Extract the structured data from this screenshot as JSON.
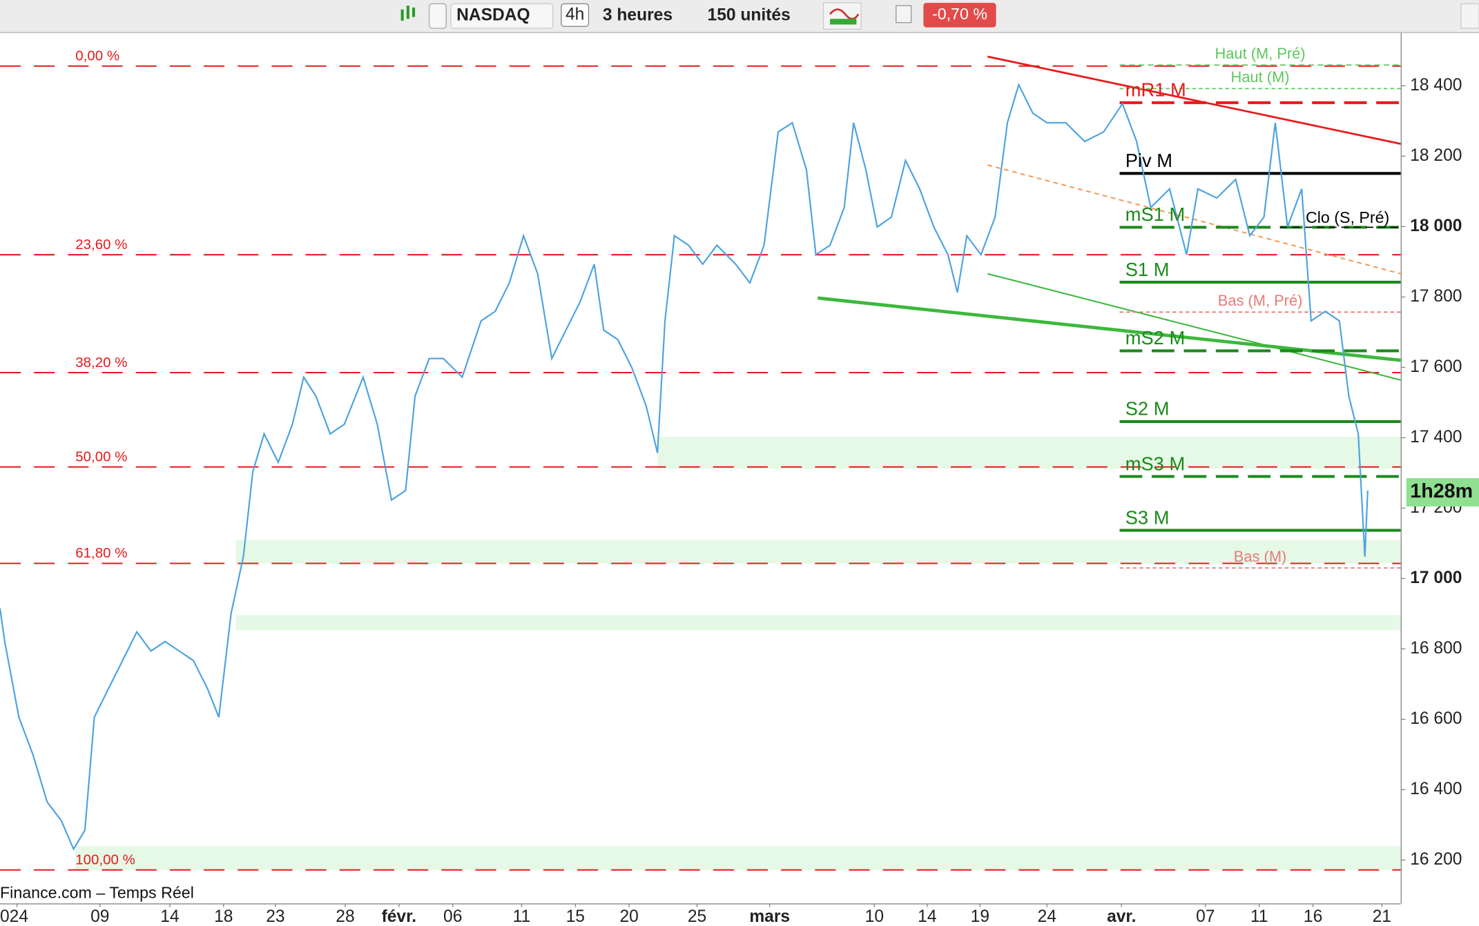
{
  "toolbar": {
    "symbol": "NASDAQ",
    "interval": "4h",
    "period": "3 heures",
    "units": "150 unités",
    "change": "-0,70 %"
  },
  "chart_data": {
    "type": "line",
    "source": "Finance.com – Temps Réel",
    "x": [
      0,
      0.5,
      2,
      3.5,
      5,
      6.5,
      7.8,
      9,
      10,
      11.5,
      13,
      14.5,
      16,
      17.5,
      19,
      20.5,
      22,
      23.2,
      24.5,
      25.8,
      26.8,
      28,
      29.5,
      31,
      32.2,
      33.5,
      35,
      36.5,
      38.5,
      40,
      41.5,
      43,
      44,
      45.5,
      47,
      49,
      51,
      52.5,
      54,
      55.5,
      57,
      58.5,
      60,
      61.5,
      63,
      64,
      65.5,
      67,
      68.5,
      69.7,
      70.5,
      71.5,
      73,
      74.5,
      76,
      78,
      79.5,
      81,
      82.5,
      84,
      85.5,
      86.5,
      88,
      89.5,
      90.5,
      91.8,
      93,
      94.5,
      96,
      97.5,
      99,
      100.5,
      101.5,
      102.5,
      104,
      105.5,
      106.8,
      108,
      109.5,
      111,
      113,
      115,
      117,
      119,
      120.5,
      122,
      124,
      125.8,
      127,
      129,
      131,
      132.5,
      134,
      135.2,
      136.5,
      138,
      139,
      140.5,
      142,
      143,
      144,
      144.7,
      145
    ],
    "series": [
      {
        "color": "#4da3e0",
        "values": [
          16915,
          16821,
          16606,
          16499,
          16365,
          16312,
          16231,
          16285,
          16606,
          16687,
          16767,
          16848,
          16794,
          16821,
          16794,
          16767,
          16687,
          16606,
          16901,
          17062,
          17303,
          17411,
          17330,
          17438,
          17572,
          17518,
          17411,
          17438,
          17572,
          17438,
          17223,
          17250,
          17518,
          17625,
          17625,
          17572,
          17732,
          17759,
          17840,
          17974,
          17866,
          17625,
          17706,
          17786,
          17893,
          17706,
          17679,
          17598,
          17491,
          17357,
          17732,
          17974,
          17947,
          17893,
          17947,
          17893,
          17840,
          17947,
          18269,
          18295,
          18161,
          17920,
          17947,
          18054,
          18295,
          18161,
          17999,
          18027,
          18188,
          18107,
          17999,
          17920,
          17813,
          17974,
          17920,
          18027,
          18295,
          18403,
          18322,
          18295,
          18295,
          18242,
          18269,
          18349,
          18242,
          18054,
          18107,
          17920,
          18107,
          18081,
          18134,
          17974,
          18027,
          18295,
          17999,
          18107,
          17732,
          17759,
          17732,
          17518,
          17411,
          17062,
          17250
        ]
      }
    ],
    "xlim": [
      0,
      148.5
    ],
    "ylim": [
      16077,
      18550
    ],
    "xticks": [
      {
        "value": 1.8,
        "label": "024"
      },
      {
        "value": 10.6,
        "label": "09"
      },
      {
        "value": 18,
        "label": "14"
      },
      {
        "value": 23.7,
        "label": "18"
      },
      {
        "value": 29.2,
        "label": "23"
      },
      {
        "value": 36.6,
        "label": "28"
      },
      {
        "value": 42.3,
        "label": "févr."
      },
      {
        "value": 48,
        "label": "06"
      },
      {
        "value": 55.3,
        "label": "11"
      },
      {
        "value": 61,
        "label": "15"
      },
      {
        "value": 66.7,
        "label": "20"
      },
      {
        "value": 73.9,
        "label": "25"
      },
      {
        "value": 81.6,
        "label": "mars"
      },
      {
        "value": 92.7,
        "label": "10"
      },
      {
        "value": 98.3,
        "label": "14"
      },
      {
        "value": 103.9,
        "label": "19"
      },
      {
        "value": 111,
        "label": "24"
      },
      {
        "value": 118.9,
        "label": "avr."
      },
      {
        "value": 127.8,
        "label": "07"
      },
      {
        "value": 133.5,
        "label": "11"
      },
      {
        "value": 139.2,
        "label": "16"
      },
      {
        "value": 146.5,
        "label": "21"
      }
    ],
    "yticks": [
      {
        "value": 16200,
        "label": "16 200"
      },
      {
        "value": 16400,
        "label": "16 400"
      },
      {
        "value": 16600,
        "label": "16 600"
      },
      {
        "value": 16800,
        "label": "16 800"
      },
      {
        "value": 17000,
        "label": "17 000"
      },
      {
        "value": 17200,
        "label": "17 200"
      },
      {
        "value": 17400,
        "label": "17 400"
      },
      {
        "value": 17600,
        "label": "17 600"
      },
      {
        "value": 17800,
        "label": "17 800"
      },
      {
        "value": 18000,
        "label": "18 000"
      },
      {
        "value": 18200,
        "label": "18 200"
      },
      {
        "value": 18400,
        "label": "18 400"
      }
    ],
    "countdown": {
      "value": 17245,
      "label": "1h28m"
    },
    "fib_levels": [
      {
        "value": 18456,
        "label": "0,00 %"
      },
      {
        "value": 17920,
        "label": "23,60 %"
      },
      {
        "value": 17585,
        "label": "38,20 %"
      },
      {
        "value": 17317,
        "label": "50,00 %"
      },
      {
        "value": 17043,
        "label": "61,80 %"
      },
      {
        "value": 16172,
        "label": "100,00 %"
      }
    ],
    "fib_color": "#e8191a",
    "pivot_start": 118.7,
    "pivot_levels": [
      {
        "value": 18459,
        "label": "Haut (M, Pré)",
        "color": "#5cc85c",
        "style": "dashed-light"
      },
      {
        "value": 18392,
        "label": "Haut (M)",
        "color": "#5cc85c",
        "style": "dotted"
      },
      {
        "value": 18352,
        "label": "mR1 M",
        "color": "#e8191a",
        "style": "dashed"
      },
      {
        "value": 18151,
        "label": "Piv M",
        "color": "#000000",
        "style": "solid"
      },
      {
        "value": 17998,
        "label": "mS1 M",
        "color": "#1a8a1a",
        "style": "dashed"
      },
      {
        "value": 17998,
        "label": "Clo (S, Pré)",
        "color": "#000000",
        "style": "right"
      },
      {
        "value": 17842,
        "label": "S1 M",
        "color": "#1a8a1a",
        "style": "solid"
      },
      {
        "value": 17757,
        "label": "Bas (M, Pré)",
        "color": "#e87a7a",
        "style": "dotted"
      },
      {
        "value": 17647,
        "label": "mS2 M",
        "color": "#1a8a1a",
        "style": "dashed"
      },
      {
        "value": 17446,
        "label": "S2 M",
        "color": "#1a8a1a",
        "style": "solid"
      },
      {
        "value": 17290,
        "label": "mS3 M",
        "color": "#1a8a1a",
        "style": "dashed"
      },
      {
        "value": 17137,
        "label": "S3 M",
        "color": "#1a8a1a",
        "style": "solid"
      },
      {
        "value": 17030,
        "label": "Bas (M)",
        "color": "#e87a7a",
        "style": "dotted"
      }
    ],
    "zones": [
      {
        "start": 69.7,
        "from": 17403,
        "to": 17312
      },
      {
        "start": 25,
        "from": 17110,
        "to": 17043
      },
      {
        "start": 25,
        "from": 16896,
        "to": 16853
      },
      {
        "start": 8,
        "from": 16239,
        "to": 16172
      }
    ],
    "zone_color": "#e6f8e6",
    "trendlines": [
      {
        "color": "#e8191a",
        "width": 2,
        "x": [
          104.7,
          156.8
        ],
        "values": [
          18483,
          18188
        ]
      },
      {
        "color": "#f39a5a",
        "width": 1.5,
        "dash": true,
        "x": [
          104.7,
          148.5
        ],
        "values": [
          18175,
          17866
        ]
      },
      {
        "color": "#3cb83c",
        "width": 3.5,
        "x": [
          86.7,
          148.5
        ],
        "values": [
          17797,
          17620
        ]
      },
      {
        "color": "#3cb83c",
        "width": 1.5,
        "x": [
          104.7,
          148.5
        ],
        "values": [
          17866,
          17564
        ]
      }
    ]
  }
}
